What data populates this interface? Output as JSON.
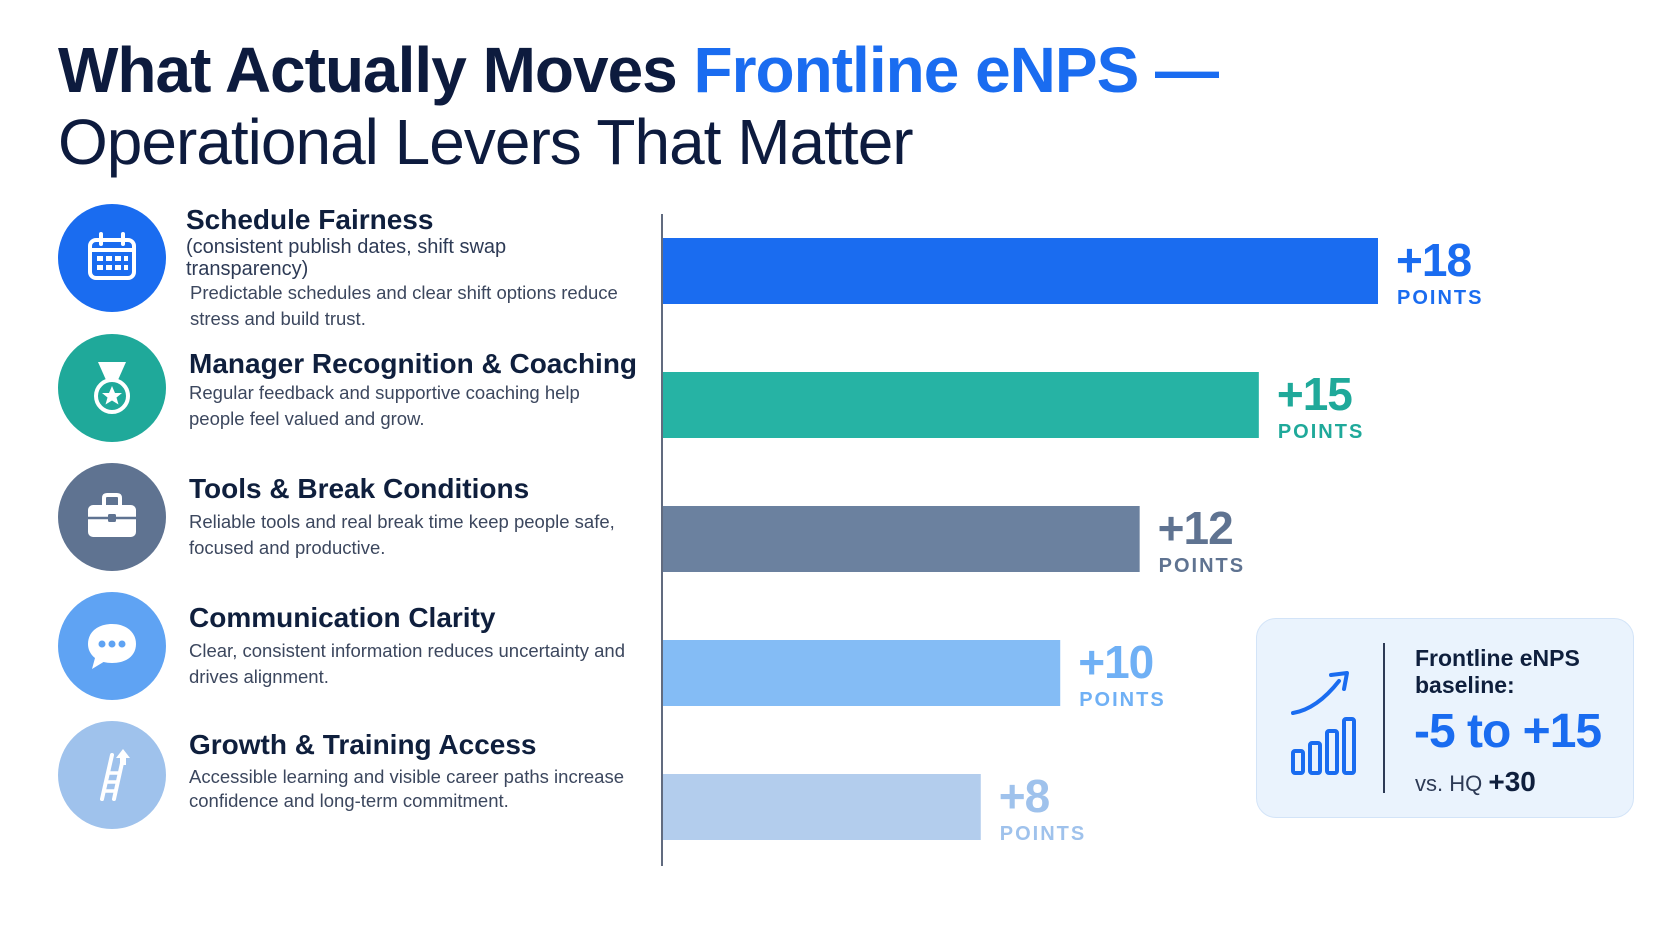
{
  "title": {
    "line1_prefix": "What Actually Moves ",
    "line1_accent": "Frontline eNPS —",
    "line2": "Operational Levers That Matter"
  },
  "levers": [
    {
      "heading": "Schedule Fairness",
      "sub": "(consistent publish dates, shift swap transparency)",
      "desc": "Predictable schedules and clear shift options reduce stress and build trust.",
      "icon": "calendar-icon",
      "color": "#1a6cf0"
    },
    {
      "heading": "Manager Recognition & Coaching",
      "sub": "",
      "desc": "Regular feedback and supportive coaching help people feel valued and grow.",
      "icon": "medal-icon",
      "color": "#1fa99a"
    },
    {
      "heading": "Tools & Break Conditions",
      "sub": "",
      "desc": "Reliable tools and real break time keep people safe, focused and productive.",
      "icon": "toolbox-icon",
      "color": "#5f7391"
    },
    {
      "heading": "Communication Clarity",
      "sub": "",
      "desc": "Clear, consistent information reduces uncertainty and drives alignment.",
      "icon": "chat-bubble-icon",
      "color": "#5fa3f3"
    },
    {
      "heading": "Growth & Training Access",
      "sub": "",
      "desc": "Accessible learning and visible career paths increase confidence and long-term commitment.",
      "icon": "ladder-icon",
      "color": "#9fc2ec"
    }
  ],
  "chart_data": {
    "type": "bar",
    "orientation": "horizontal",
    "categories": [
      "Schedule Fairness",
      "Manager Recognition & Coaching",
      "Tools & Break Conditions",
      "Communication Clarity",
      "Growth & Training Access"
    ],
    "values": [
      18,
      15,
      12,
      10,
      8
    ],
    "value_labels": [
      "+18",
      "+15",
      "+12",
      "+10",
      "+8"
    ],
    "unit_label": "POINTS",
    "colors": [
      "#1a6cf0",
      "#26b3a4",
      "#6b819f",
      "#84bcf5",
      "#b3cded"
    ],
    "label_colors": [
      "#1a6cf0",
      "#1fa99a",
      "#5f7391",
      "#6fb0f5",
      "#9fc2ec"
    ],
    "xlim": [
      0,
      18
    ],
    "grid": false,
    "legend": "none"
  },
  "callout": {
    "label": "Frontline eNPS baseline:",
    "range": "-5 to +15",
    "compare_prefix": "vs. HQ ",
    "compare_value": "+30",
    "icon": "trend-up-icon"
  }
}
